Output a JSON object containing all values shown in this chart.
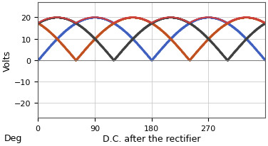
{
  "title_y": "Volts",
  "xlabel": "D.C. after the rectifier",
  "xlabel_deg": "Deg",
  "amplitude": 20,
  "ylim": [
    -27,
    27
  ],
  "xlim": [
    0,
    360
  ],
  "xticks": [
    0,
    90,
    180,
    270
  ],
  "yticks": [
    -20,
    -10,
    0,
    10,
    20
  ],
  "color_dc": "#d04040",
  "color_phase1": "#4060c0",
  "color_phase2": "#c05020",
  "color_phase3": "#404040",
  "bg_color": "#ffffff",
  "grid_color": "#c0c0c0",
  "figsize": [
    3.76,
    2.07
  ],
  "dpi": 100
}
